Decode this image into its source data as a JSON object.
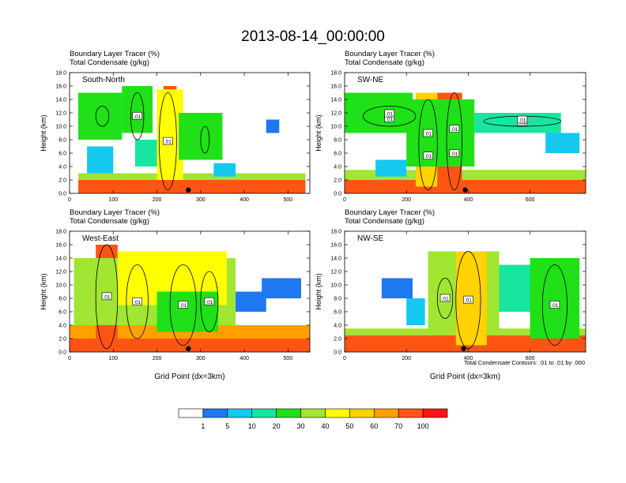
{
  "title": "2013-08-14_00:00:00",
  "colors": {
    "levels": [
      "#ffffff",
      "#1e78f0",
      "#14c8f0",
      "#18e6a0",
      "#20e018",
      "#a0e632",
      "#ffff00",
      "#ffd200",
      "#ffa000",
      "#ff5514",
      "#ff1414"
    ],
    "contour": "#000000",
    "marker": "#000000"
  },
  "chart_data": [
    {
      "type": "heatmap",
      "panel": "South-North",
      "var_label_1": "Boundary Layer Tracer   (%)",
      "var_label_2": "Total Condensate   (g/kg)",
      "xlabel": "",
      "ylabel": "Height (km)",
      "xlim": [
        0,
        550
      ],
      "ylim": [
        0,
        18
      ],
      "xticks": [
        0,
        100,
        200,
        300,
        400,
        500
      ],
      "yticks": [
        0,
        2,
        4,
        6,
        8,
        10,
        12,
        14,
        16,
        18
      ],
      "ytick_labels": [
        "0.0",
        "2.0",
        "4.0",
        "6.0",
        "8.0",
        "10.0",
        "12.0",
        "14.0",
        "16.0",
        "18.0"
      ],
      "contour_labels": [
        ".01",
        ".01"
      ],
      "marker_x": 272,
      "blobs": [
        {
          "x": [
            20,
            540
          ],
          "y": [
            0,
            2
          ],
          "v": 80
        },
        {
          "x": [
            20,
            540
          ],
          "y": [
            2,
            3
          ],
          "v": 35
        },
        {
          "x": [
            215,
            245
          ],
          "y": [
            1,
            16
          ],
          "v": 90
        },
        {
          "x": [
            200,
            260
          ],
          "y": [
            2,
            15.5
          ],
          "v": 45
        },
        {
          "x": [
            20,
            120
          ],
          "y": [
            8,
            15
          ],
          "v": 20
        },
        {
          "x": [
            120,
            190
          ],
          "y": [
            9,
            16
          ],
          "v": 25
        },
        {
          "x": [
            250,
            350
          ],
          "y": [
            5,
            12
          ],
          "v": 20
        },
        {
          "x": [
            40,
            100
          ],
          "y": [
            3,
            7
          ],
          "v": 8
        },
        {
          "x": [
            150,
            200
          ],
          "y": [
            4,
            8
          ],
          "v": 10
        },
        {
          "x": [
            330,
            380
          ],
          "y": [
            2.5,
            4.5
          ],
          "v": 6
        },
        {
          "x": [
            450,
            480
          ],
          "y": [
            9,
            11
          ],
          "v": 4
        }
      ],
      "contours": [
        {
          "x": [
            205,
            245
          ],
          "y": [
            0.5,
            15
          ]
        },
        {
          "x": [
            140,
            170
          ],
          "y": [
            8,
            15
          ]
        },
        {
          "x": [
            60,
            90
          ],
          "y": [
            10,
            13
          ]
        },
        {
          "x": [
            300,
            320
          ],
          "y": [
            6,
            10
          ]
        }
      ]
    },
    {
      "type": "heatmap",
      "panel": "SW-NE",
      "var_label_1": "Boundary Layer Tracer   (%)",
      "var_label_2": "Total Condensate   (g/kg)",
      "xlabel": "",
      "ylabel": "Height (km)",
      "xlim": [
        0,
        780
      ],
      "ylim": [
        0,
        18
      ],
      "xticks": [
        0,
        200,
        400,
        600
      ],
      "yticks": [
        0,
        2,
        4,
        6,
        8,
        10,
        12,
        14,
        16,
        18
      ],
      "ytick_labels": [
        "0.0",
        "2.0",
        "4.0",
        "6.0",
        "8.0",
        "10.0",
        "12.0",
        "14.0",
        "16.0",
        "18.0"
      ],
      "contour_labels": [
        ".01",
        ".01",
        ".01",
        ".01",
        ".01",
        ".01",
        ".01",
        ".01"
      ],
      "marker_x": 390,
      "blobs": [
        {
          "x": [
            0,
            780
          ],
          "y": [
            0,
            2
          ],
          "v": 80
        },
        {
          "x": [
            0,
            780
          ],
          "y": [
            2,
            3.5
          ],
          "v": 35
        },
        {
          "x": [
            230,
            300
          ],
          "y": [
            1,
            15
          ],
          "v": 55
        },
        {
          "x": [
            300,
            380
          ],
          "y": [
            1,
            15
          ],
          "v": 90
        },
        {
          "x": [
            200,
            420
          ],
          "y": [
            4,
            14
          ],
          "v": 25
        },
        {
          "x": [
            0,
            220
          ],
          "y": [
            9,
            15
          ],
          "v": 20
        },
        {
          "x": [
            420,
            700
          ],
          "y": [
            9,
            12
          ],
          "v": 18
        },
        {
          "x": [
            650,
            760
          ],
          "y": [
            6,
            9
          ],
          "v": 8
        },
        {
          "x": [
            100,
            200
          ],
          "y": [
            2.5,
            5
          ],
          "v": 6
        }
      ],
      "contours": [
        {
          "x": [
            240,
            300
          ],
          "y": [
            0.5,
            14
          ]
        },
        {
          "x": [
            330,
            380
          ],
          "y": [
            0.5,
            15
          ]
        },
        {
          "x": [
            60,
            230
          ],
          "y": [
            10,
            13
          ]
        },
        {
          "x": [
            450,
            700
          ],
          "y": [
            10,
            11.5
          ]
        }
      ]
    },
    {
      "type": "heatmap",
      "panel": "West-East",
      "var_label_1": "Boundary Layer Tracer   (%)",
      "var_label_2": "Total Condensate   (g/kg)",
      "xlabel": "Grid Point (dx=3km)",
      "ylabel": "Height (km)",
      "xlim": [
        0,
        550
      ],
      "ylim": [
        0,
        18
      ],
      "xticks": [
        0,
        100,
        200,
        300,
        400,
        500
      ],
      "yticks": [
        0,
        2,
        4,
        6,
        8,
        10,
        12,
        14,
        16,
        18
      ],
      "ytick_labels": [
        "0.0",
        "2.0",
        "4.0",
        "6.0",
        "8.0",
        "10.0",
        "12.0",
        "14.0",
        "16.0",
        "18.0"
      ],
      "contour_labels": [
        ".01",
        ".01",
        ".01",
        ".01"
      ],
      "marker_x": 272,
      "blobs": [
        {
          "x": [
            0,
            550
          ],
          "y": [
            0,
            2
          ],
          "v": 80
        },
        {
          "x": [
            0,
            550
          ],
          "y": [
            2,
            4
          ],
          "v": 65
        },
        {
          "x": [
            60,
            110
          ],
          "y": [
            2,
            16
          ],
          "v": 75
        },
        {
          "x": [
            10,
            380
          ],
          "y": [
            4,
            14
          ],
          "v": 35
        },
        {
          "x": [
            110,
            360
          ],
          "y": [
            7,
            15
          ],
          "v": 40
        },
        {
          "x": [
            200,
            340
          ],
          "y": [
            3,
            9
          ],
          "v": 25
        },
        {
          "x": [
            380,
            450
          ],
          "y": [
            6,
            9
          ],
          "v": 4
        },
        {
          "x": [
            440,
            530
          ],
          "y": [
            8,
            11
          ],
          "v": 3
        }
      ],
      "contours": [
        {
          "x": [
            60,
            110
          ],
          "y": [
            0.5,
            16
          ]
        },
        {
          "x": [
            130,
            180
          ],
          "y": [
            2,
            13
          ]
        },
        {
          "x": [
            230,
            290
          ],
          "y": [
            1,
            13
          ]
        },
        {
          "x": [
            300,
            340
          ],
          "y": [
            3,
            12
          ]
        }
      ]
    },
    {
      "type": "heatmap",
      "panel": "NW-SE",
      "var_label_1": "Boundary Layer Tracer   (%)",
      "var_label_2": "Total Condensate   (g/kg)",
      "xlabel": "Grid Point (dx=3km)",
      "ylabel": "Height (km)",
      "xlim": [
        0,
        780
      ],
      "ylim": [
        0,
        18
      ],
      "xticks": [
        0,
        200,
        400,
        600
      ],
      "yticks": [
        0,
        2,
        4,
        6,
        8,
        10,
        12,
        14,
        16,
        18
      ],
      "ytick_labels": [
        "0.0",
        "2.0",
        "4.0",
        "6.0",
        "8.0",
        "10.0",
        "12.0",
        "14.0",
        "16.0",
        "18.0"
      ],
      "contour_labels": [
        ".01",
        ".01",
        ".01"
      ],
      "marker_x": 385,
      "blobs": [
        {
          "x": [
            0,
            780
          ],
          "y": [
            0,
            2.5
          ],
          "v": 80
        },
        {
          "x": [
            0,
            780
          ],
          "y": [
            2.5,
            3.5
          ],
          "v": 30
        },
        {
          "x": [
            270,
            500
          ],
          "y": [
            3,
            15
          ],
          "v": 30
        },
        {
          "x": [
            360,
            460
          ],
          "y": [
            1,
            15
          ],
          "v": 55
        },
        {
          "x": [
            500,
            620
          ],
          "y": [
            6,
            13
          ],
          "v": 15
        },
        {
          "x": [
            600,
            760
          ],
          "y": [
            2,
            14
          ],
          "v": 25
        },
        {
          "x": [
            120,
            220
          ],
          "y": [
            8,
            11
          ],
          "v": 3
        },
        {
          "x": [
            200,
            260
          ],
          "y": [
            4,
            8
          ],
          "v": 8
        }
      ],
      "contours": [
        {
          "x": [
            360,
            440
          ],
          "y": [
            0.5,
            15
          ]
        },
        {
          "x": [
            640,
            720
          ],
          "y": [
            1,
            13
          ]
        },
        {
          "x": [
            300,
            350
          ],
          "y": [
            5,
            11
          ]
        }
      ]
    }
  ],
  "footnote": "Total Condensate Contours: .01 to .01 by .000",
  "colorbar": {
    "labels": [
      "1",
      "5",
      "10",
      "20",
      "30",
      "40",
      "50",
      "60",
      "70",
      "100"
    ],
    "bounds": [
      0,
      1,
      5,
      10,
      20,
      30,
      40,
      50,
      60,
      70,
      100
    ]
  }
}
